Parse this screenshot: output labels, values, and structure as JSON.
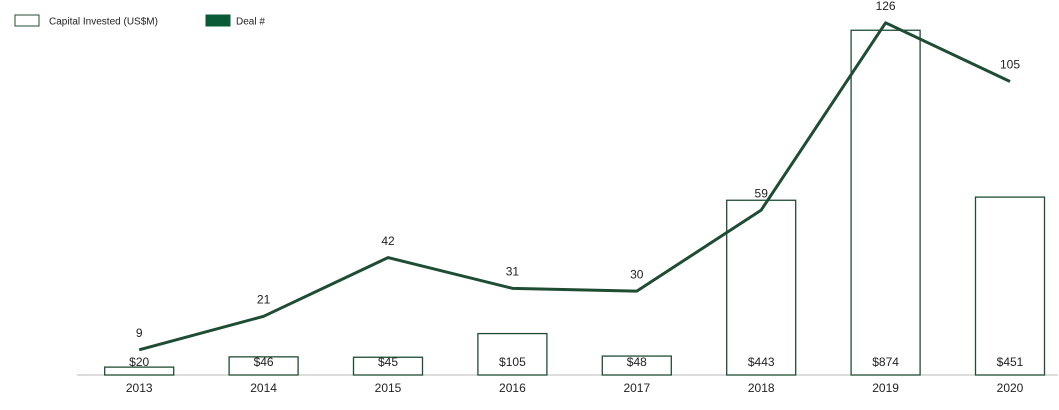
{
  "chart_data": {
    "type": "bar-line",
    "categories": [
      "2013",
      "2014",
      "2015",
      "2016",
      "2017",
      "2018",
      "2019",
      "2020"
    ],
    "series": [
      {
        "name": "Capital Invested (US$M)",
        "type": "bar",
        "color": "#1f4d33",
        "fill": "#ffffff",
        "values": [
          20,
          46,
          45,
          105,
          48,
          443,
          874,
          451
        ],
        "value_labels": [
          "$20",
          "$46",
          "$45",
          "$105",
          "$48",
          "$443",
          "$874",
          "$451"
        ]
      },
      {
        "name": "Deal #",
        "type": "line",
        "axis": "y2",
        "color": "#1f4d33",
        "legend_color": "#0b5a36",
        "values": [
          9,
          21,
          42,
          31,
          30,
          59,
          126,
          105
        ]
      }
    ],
    "ylim": [
      0,
      900
    ],
    "y2lim": [
      0,
      127
    ],
    "legend": "top-left"
  }
}
